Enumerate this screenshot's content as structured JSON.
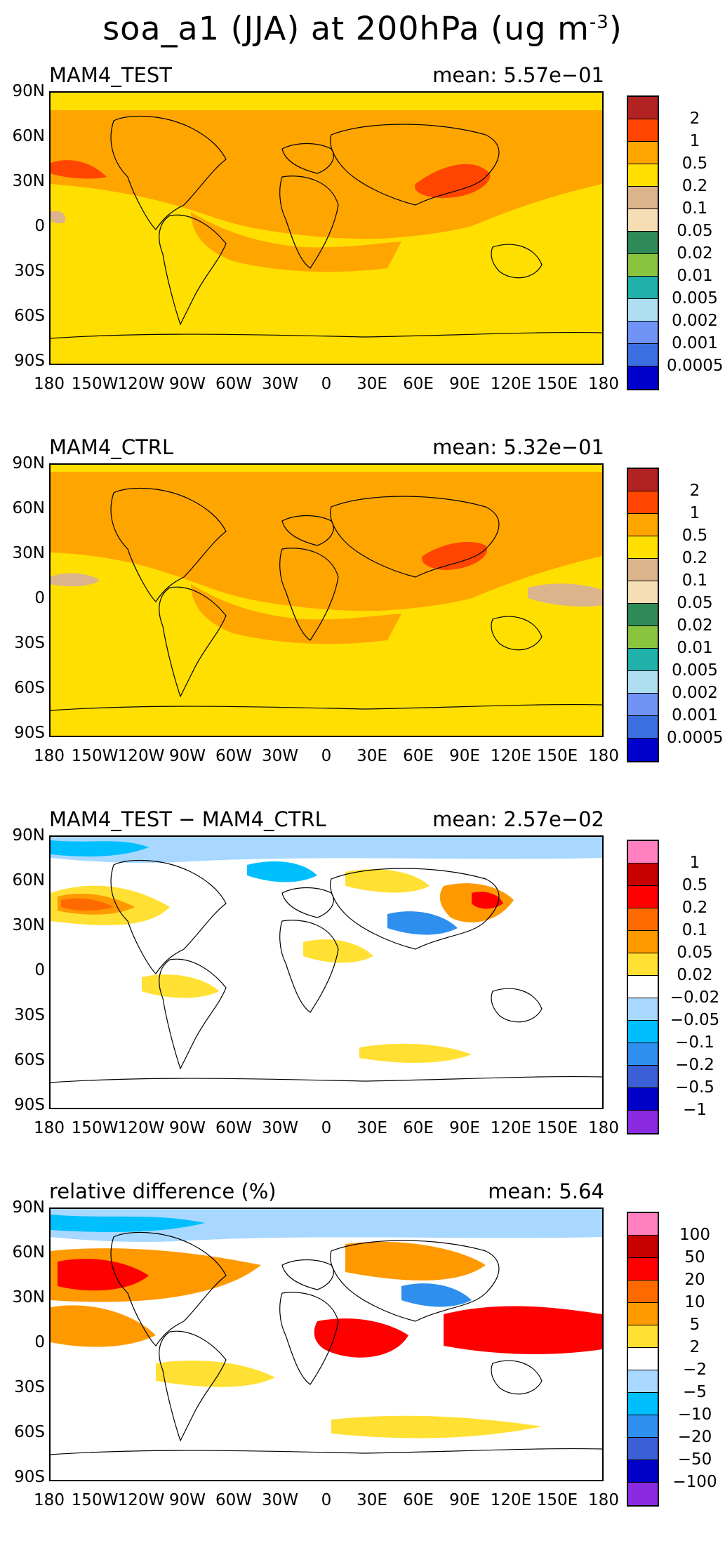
{
  "title": {
    "main": "soa_a1 (JJA) at 200hPa (ug m",
    "sup": "-3",
    "close": ")"
  },
  "axes": {
    "ylabels": [
      "90N",
      "60N",
      "30N",
      "0",
      "30S",
      "60S",
      "90S"
    ],
    "xlabels": [
      "180",
      "150W",
      "120W",
      "90W",
      "60W",
      "30W",
      "0",
      "30E",
      "60E",
      "90E",
      "120E",
      "150E",
      "180"
    ]
  },
  "legends": {
    "abs": {
      "labels": [
        "2",
        "1",
        "0.5",
        "0.2",
        "0.1",
        "0.05",
        "0.02",
        "0.01",
        "0.005",
        "0.002",
        "0.001",
        "0.0005"
      ],
      "colors": [
        "#b22222",
        "#ff4500",
        "#ffa500",
        "#ffdf00",
        "#dcb48c",
        "#f5deb3",
        "#2e8b57",
        "#8ac43f",
        "#20b2aa",
        "#aedff0",
        "#6f94f5",
        "#3b6ee0",
        "#0000cd"
      ]
    },
    "diff": {
      "labels": [
        "1",
        "0.5",
        "0.2",
        "0.1",
        "0.05",
        "0.02",
        "−0.02",
        "−0.05",
        "−0.1",
        "−0.2",
        "−0.5",
        "−1"
      ],
      "colors": [
        "#ff7fbf",
        "#c80000",
        "#ff0000",
        "#ff6a00",
        "#ff9900",
        "#ffe033",
        "#ffffff",
        "#a8d8ff",
        "#00bfff",
        "#2e8fef",
        "#3a5fd6",
        "#0000c8",
        "#8a2be2"
      ]
    },
    "rel": {
      "labels": [
        "100",
        "50",
        "20",
        "10",
        "5",
        "2",
        "−2",
        "−5",
        "−10",
        "−20",
        "−50",
        "−100"
      ],
      "colors": [
        "#ff7fbf",
        "#c80000",
        "#ff0000",
        "#ff6a00",
        "#ff9900",
        "#ffe033",
        "#ffffff",
        "#a8d8ff",
        "#00bfff",
        "#2e8fef",
        "#3a5fd6",
        "#0000c8",
        "#8a2be2"
      ]
    }
  },
  "panels": [
    {
      "name": "MAM4_TEST",
      "mean": "mean: 5.57e−01",
      "legend": "abs",
      "background": "#ffdf00"
    },
    {
      "name": "MAM4_CTRL",
      "mean": "mean: 5.32e−01",
      "legend": "abs",
      "background": "#ffdf00"
    },
    {
      "name": "MAM4_TEST − MAM4_CTRL",
      "mean": "mean: 2.57e−02",
      "legend": "diff",
      "background": "#ffffff"
    },
    {
      "name": "relative difference (%)",
      "mean": "mean:  5.64",
      "legend": "rel",
      "background": "#ffffff"
    }
  ]
}
